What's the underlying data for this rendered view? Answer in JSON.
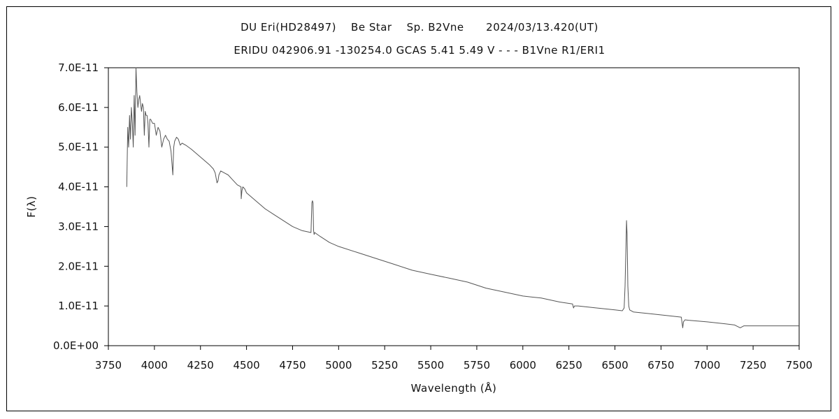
{
  "chart_data": {
    "type": "line",
    "title": "DU Eri(HD28497)    Be Star    Sp. B2Vne      2024/03/13.420(UT)",
    "subtitle": "ERIDU 042906.91 -130254.0 GCAS 5.41 5.49 V - - - B1Vne R1/ERI1",
    "xlabel": "Wavelength (Å)",
    "ylabel": "F(λ)",
    "xlim": [
      3750,
      7500
    ],
    "ylim": [
      0,
      7e-11
    ],
    "grid": false,
    "x_ticks": [
      3750,
      4000,
      4250,
      4500,
      4750,
      5000,
      5250,
      5500,
      5750,
      6000,
      6250,
      6500,
      6750,
      7000,
      7250,
      7500
    ],
    "x_tick_labels": [
      "3750",
      "4000",
      "4250",
      "4500",
      "4750",
      "5000",
      "5250",
      "5500",
      "5750",
      "6000",
      "6250",
      "6500",
      "6750",
      "7000",
      "7250",
      "7500"
    ],
    "y_ticks": [
      0,
      1e-11,
      2e-11,
      3e-11,
      4e-11,
      5e-11,
      6e-11,
      7e-11
    ],
    "y_tick_labels": [
      "0.0E+00",
      "1.0E-11",
      "2.0E-11",
      "3.0E-11",
      "4.0E-11",
      "5.0E-11",
      "6.0E-11",
      "7.0E-11"
    ],
    "series": [
      {
        "color": "#555555",
        "x": [
          3850,
          3855,
          3860,
          3865,
          3870,
          3875,
          3880,
          3885,
          3890,
          3895,
          3900,
          3905,
          3910,
          3915,
          3920,
          3925,
          3930,
          3935,
          3940,
          3945,
          3950,
          3955,
          3960,
          3965,
          3970,
          3975,
          3980,
          3990,
          4000,
          4010,
          4020,
          4030,
          4040,
          4050,
          4060,
          4070,
          4080,
          4090,
          4095,
          4100,
          4102,
          4105,
          4110,
          4120,
          4130,
          4140,
          4150,
          4170,
          4200,
          4250,
          4300,
          4320,
          4330,
          4340,
          4345,
          4350,
          4360,
          4380,
          4400,
          4420,
          4450,
          4470,
          4471,
          4475,
          4480,
          4490,
          4500,
          4550,
          4600,
          4650,
          4700,
          4750,
          4800,
          4850,
          4855,
          4858,
          4861,
          4864,
          4867,
          4870,
          4900,
          4950,
          5000,
          5100,
          5200,
          5300,
          5400,
          5500,
          5600,
          5700,
          5800,
          5900,
          6000,
          6100,
          6200,
          6270,
          6275,
          6280,
          6300,
          6400,
          6500,
          6540,
          6550,
          6555,
          6560,
          6563,
          6566,
          6570,
          6575,
          6580,
          6600,
          6700,
          6800,
          6860,
          6868,
          6872,
          6880,
          6900,
          7000,
          7100,
          7150,
          7180,
          7200,
          7300,
          7400,
          7500
        ],
        "y": [
          4e-11,
          5.5e-11,
          5e-11,
          5.8e-11,
          5.2e-11,
          6e-11,
          5.6e-11,
          5e-11,
          6.3e-11,
          5.3e-11,
          7e-11,
          6.4e-11,
          6e-11,
          6.2e-11,
          6.3e-11,
          6.1e-11,
          5.9e-11,
          6.1e-11,
          6e-11,
          5.3e-11,
          5.9e-11,
          5.8e-11,
          5.8e-11,
          5.6e-11,
          5e-11,
          5.7e-11,
          5.7e-11,
          5.6e-11,
          5.6e-11,
          5.3e-11,
          5.5e-11,
          5.4e-11,
          5e-11,
          5.2e-11,
          5.3e-11,
          5.2e-11,
          5.15e-11,
          4.9e-11,
          4.6e-11,
          4.3e-11,
          4.6e-11,
          5e-11,
          5.15e-11,
          5.25e-11,
          5.2e-11,
          5.05e-11,
          5.1e-11,
          5.05e-11,
          4.95e-11,
          4.75e-11,
          4.55e-11,
          4.45e-11,
          4.35e-11,
          4.1e-11,
          4.15e-11,
          4.3e-11,
          4.4e-11,
          4.35e-11,
          4.3e-11,
          4.2e-11,
          4.05e-11,
          4e-11,
          3.7e-11,
          3.9e-11,
          4e-11,
          3.95e-11,
          3.85e-11,
          3.65e-11,
          3.45e-11,
          3.3e-11,
          3.15e-11,
          3e-11,
          2.9e-11,
          2.85e-11,
          3.6e-11,
          3.65e-11,
          3.6e-11,
          2.9e-11,
          2.8e-11,
          2.85e-11,
          2.75e-11,
          2.6e-11,
          2.5e-11,
          2.35e-11,
          2.2e-11,
          2.05e-11,
          1.9e-11,
          1.8e-11,
          1.7e-11,
          1.6e-11,
          1.45e-11,
          1.35e-11,
          1.25e-11,
          1.2e-11,
          1.1e-11,
          1.05e-11,
          9.5e-12,
          1e-11,
          1e-11,
          9.5e-12,
          9e-12,
          8.8e-12,
          9.5e-12,
          1.5e-11,
          2.5e-11,
          3.15e-11,
          2.8e-11,
          1.5e-11,
          1e-11,
          9e-12,
          8.5e-12,
          8e-12,
          7.5e-12,
          7.2e-12,
          4.5e-12,
          6e-12,
          6.5e-12,
          6.4e-12,
          6e-12,
          5.5e-12,
          5.2e-12,
          4.5e-12,
          5e-12,
          5e-12,
          5e-12,
          5e-12
        ]
      }
    ]
  }
}
